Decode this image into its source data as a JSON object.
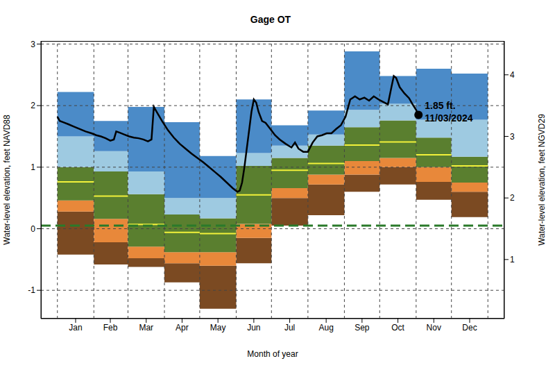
{
  "chart_data": {
    "type": "percentile_band_line",
    "title": "Gage OT",
    "x_label": "Month of year",
    "y_label": "Water-level elevation, feet NAVD88",
    "y2_label": "Water-level elevation, feet NGVD29",
    "xlim": [
      -13,
      381
    ],
    "xticks": [
      {
        "value": 16.5,
        "label": "Jan"
      },
      {
        "value": 46,
        "label": "Feb"
      },
      {
        "value": 76.5,
        "label": "Mar"
      },
      {
        "value": 107,
        "label": "Apr"
      },
      {
        "value": 137.5,
        "label": "May"
      },
      {
        "value": 168,
        "label": "Jun"
      },
      {
        "value": 198.5,
        "label": "Jul"
      },
      {
        "value": 229.5,
        "label": "Aug"
      },
      {
        "value": 260,
        "label": "Sep"
      },
      {
        "value": 290.5,
        "label": "Oct"
      },
      {
        "value": 321,
        "label": "Nov"
      },
      {
        "value": 351.5,
        "label": "Dec"
      }
    ],
    "ylim": [
      -1.46,
      3.05
    ],
    "yticks": [
      -1,
      0,
      1,
      2,
      3
    ],
    "y2lim": [
      0.04,
      4.55
    ],
    "y2ticks": [
      1,
      2,
      3,
      4
    ],
    "grid": true,
    "month_bounds": [
      1,
      32,
      61,
      92,
      122,
      153,
      183,
      214,
      245,
      275,
      306,
      336,
      367
    ],
    "band_edges": [
      [
        -0.42,
        -0.58,
        -0.62,
        -0.87,
        -1.3,
        -0.56,
        0.05,
        0.22,
        0.6,
        0.72,
        0.47,
        0.19
      ],
      [
        0.28,
        -0.22,
        -0.48,
        -0.56,
        -0.6,
        -0.15,
        0.5,
        0.72,
        0.88,
        1.0,
        0.76,
        0.6
      ],
      [
        0.46,
        0.16,
        -0.29,
        -0.38,
        -0.38,
        0.08,
        0.66,
        0.88,
        1.1,
        1.15,
        1.0,
        0.75
      ],
      [
        1.0,
        0.93,
        0.56,
        0.23,
        0.17,
        1.02,
        1.15,
        1.35,
        1.65,
        1.76,
        1.48,
        1.17
      ],
      [
        1.5,
        1.26,
        0.93,
        0.5,
        0.5,
        1.23,
        1.35,
        1.53,
        1.93,
        2.03,
        1.77,
        1.77
      ],
      [
        2.22,
        1.75,
        1.98,
        1.73,
        1.18,
        2.1,
        1.68,
        1.92,
        2.88,
        2.48,
        2.6,
        2.52
      ]
    ],
    "band_colors": [
      "#7b4a22",
      "#e8883a",
      "#5a7f2f",
      "#9ecae1",
      "#4b8bc8"
    ],
    "median": [
      0.76,
      0.53,
      0.07,
      -0.06,
      -0.08,
      0.55,
      0.95,
      1.06,
      1.36,
      1.41,
      1.2,
      1.02
    ],
    "median_color": "#f2f23a",
    "line": {
      "color": "#000000",
      "x": [
        1,
        3,
        6,
        10,
        15,
        20,
        25,
        30,
        34,
        38,
        42,
        46,
        49,
        51,
        54,
        58,
        62,
        66,
        70,
        74,
        78,
        81,
        83,
        86,
        90,
        95,
        100,
        105,
        110,
        115,
        120,
        125,
        130,
        135,
        140,
        145,
        150,
        154,
        156,
        158,
        160,
        162,
        164,
        166,
        168,
        170,
        172,
        175,
        178,
        182,
        186,
        190,
        195,
        200,
        203,
        206,
        210,
        214,
        218,
        222,
        226,
        230,
        234,
        238,
        242,
        246,
        250,
        254,
        258,
        262,
        266,
        270,
        274,
        278,
        282,
        285,
        287,
        289,
        292,
        296,
        300,
        303,
        306,
        308
      ],
      "values": [
        1.82,
        1.75,
        1.73,
        1.7,
        1.66,
        1.62,
        1.58,
        1.55,
        1.52,
        1.5,
        1.47,
        1.43,
        1.45,
        1.58,
        1.56,
        1.53,
        1.5,
        1.48,
        1.47,
        1.45,
        1.42,
        1.45,
        1.98,
        1.88,
        1.75,
        1.6,
        1.48,
        1.38,
        1.3,
        1.22,
        1.15,
        1.08,
        1.0,
        0.92,
        0.84,
        0.75,
        0.66,
        0.6,
        0.62,
        0.75,
        1.0,
        1.3,
        1.6,
        1.9,
        2.1,
        2.05,
        1.9,
        1.75,
        1.72,
        1.62,
        1.52,
        1.45,
        1.38,
        1.32,
        1.4,
        1.3,
        1.25,
        1.25,
        1.4,
        1.5,
        1.52,
        1.55,
        1.55,
        1.62,
        1.68,
        1.82,
        2.1,
        2.15,
        2.1,
        2.13,
        2.08,
        2.15,
        2.1,
        2.06,
        2.02,
        2.3,
        2.48,
        2.45,
        2.3,
        2.2,
        2.12,
        2.02,
        1.93,
        1.85
      ]
    },
    "points": [
      {
        "x": 308,
        "y": 1.85,
        "text": [
          "1.85 ft.",
          "11/03/2024"
        ],
        "color": "#000000"
      }
    ],
    "reference_line": {
      "y": 0.05,
      "color": "#2a7a2a",
      "line_style": "dashed"
    }
  }
}
